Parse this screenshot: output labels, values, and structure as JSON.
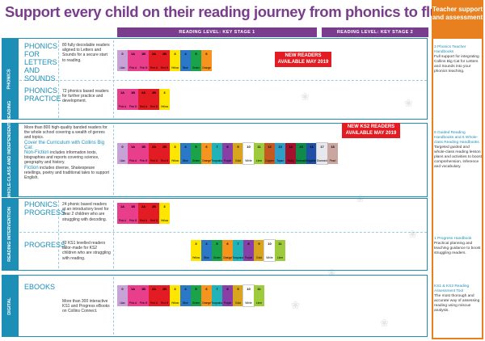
{
  "title": "Support every child on their reading journey from phonics to fluency",
  "reading_level_bars": {
    "ks1": "READING LEVEL: KEY STAGE 1",
    "ks2": "READING LEVEL: KEY STAGE 2"
  },
  "assessment_header": "Teacher support and assessment",
  "sidebars": {
    "phonics": "PHONICS",
    "guided": "GUIDED, WHOLE-CLASS AND INDEPENDENT READING",
    "intervention": "READING INTERVENTION",
    "digital": "DIGITAL"
  },
  "rows": {
    "phonics_letters": {
      "name": "PHONICS FOR LETTERS AND SOUNDS",
      "description": "80 fully decodable readers aligned to Letters and Sounds for a secure start to reading."
    },
    "phonics_practice": {
      "name": "PHONICS PRACTICE",
      "description": "72 phonics based readers for further practice and development."
    },
    "guided": {
      "description_intro": "More than 800 high-quality banded readers for the whole school covering a wealth of genres and topics.",
      "cover_heading": "Cover the Curriculum with Collins Big Cat:",
      "nonfiction_heading": "Non-Fiction",
      "nonfiction_text": "includes information texts, biographies and reports covering science, geography and history.",
      "fiction_heading": "Fiction",
      "fiction_text": "includes diverse, Shakespeare retellings, poetry and traditional tales to support English."
    },
    "phonics_progress": {
      "name": "PHONICS PROGRESS",
      "description": "24 phonic based readers at an introductory level for Year 2 children who are struggling with decoding."
    },
    "progress": {
      "name": "PROGRESS",
      "description": "72 KS1 levelled readers tailor-made for KS2 children who are struggling with reading."
    },
    "ebooks": {
      "name": "EBOOKS",
      "description": "More than 300 interactive KS1 and Progress eBooks on Collins Connect."
    }
  },
  "new_tags": {
    "new_readers": "NEW READERS AVAILABLE MAY 2019",
    "new_ks2": "NEW KS2 READERS AVAILABLE MAY 2019"
  },
  "bands": {
    "ks1": [
      {
        "n": "0",
        "name": "Lilac",
        "color": "#c8a2d6"
      },
      {
        "n": "1A",
        "name": "Pink A",
        "color": "#e83e8c"
      },
      {
        "n": "1B",
        "name": "Pink B",
        "color": "#e83e8c"
      },
      {
        "n": "2A",
        "name": "Red A",
        "color": "#e31b23"
      },
      {
        "n": "2B",
        "name": "Red B",
        "color": "#e31b23"
      },
      {
        "n": "3",
        "name": "Yellow",
        "color": "#ffe600"
      },
      {
        "n": "4",
        "name": "Blue",
        "color": "#2a78c7"
      },
      {
        "n": "5",
        "name": "Green",
        "color": "#1aa34a"
      },
      {
        "n": "6",
        "name": "Orange",
        "color": "#f7941d"
      },
      {
        "n": "7",
        "name": "Turquoise",
        "color": "#22b3b8"
      },
      {
        "n": "8",
        "name": "Purple",
        "color": "#8a3fa6"
      },
      {
        "n": "9",
        "name": "Gold",
        "color": "#d8a51c"
      },
      {
        "n": "10",
        "name": "White",
        "color": "#ffffff"
      },
      {
        "n": "11",
        "name": "Lime",
        "color": "#9ecb3b"
      }
    ],
    "ks2": [
      {
        "n": "12",
        "name": "Copper",
        "color": "#c45a1f"
      },
      {
        "n": "13",
        "name": "Topaz",
        "color": "#2e9ec9"
      },
      {
        "n": "14",
        "name": "Ruby",
        "color": "#a3122d"
      },
      {
        "n": "15",
        "name": "Emerald",
        "color": "#0f8a4a"
      },
      {
        "n": "16",
        "name": "Sapphire",
        "color": "#1f4fa6"
      },
      {
        "n": "17",
        "name": "Diamond",
        "color": "#e7e7ee"
      },
      {
        "n": "18",
        "name": "Pearl",
        "color": "#c9a6a0"
      }
    ]
  },
  "assessment": {
    "phonics": {
      "title": "3 Phonics Teacher Handbooks",
      "body": "Full support for integrating Collins Big Cat for Letters and Sounds into your phonics teaching."
    },
    "guided": {
      "title": "6 Guided Reading Handbooks and 6 Whole-class Reading Handbooks",
      "body": "Targeted guided and whole-class reading lesson plans and activities to boost comprehension, inference and vocabulary."
    },
    "intervention": {
      "title": "1 Progress Handbook",
      "body": "Practical planning and teaching guidance to boost struggling readers."
    },
    "digital": {
      "title": "KS1 & KS2 Reading Assessment Tool",
      "body": "The most thorough and accurate way of assessing reading using miscue analysis."
    }
  },
  "colors": {
    "purple": "#7a3c8c",
    "blue": "#1d8fb7",
    "orange": "#e8801f",
    "red": "#e31b23"
  }
}
